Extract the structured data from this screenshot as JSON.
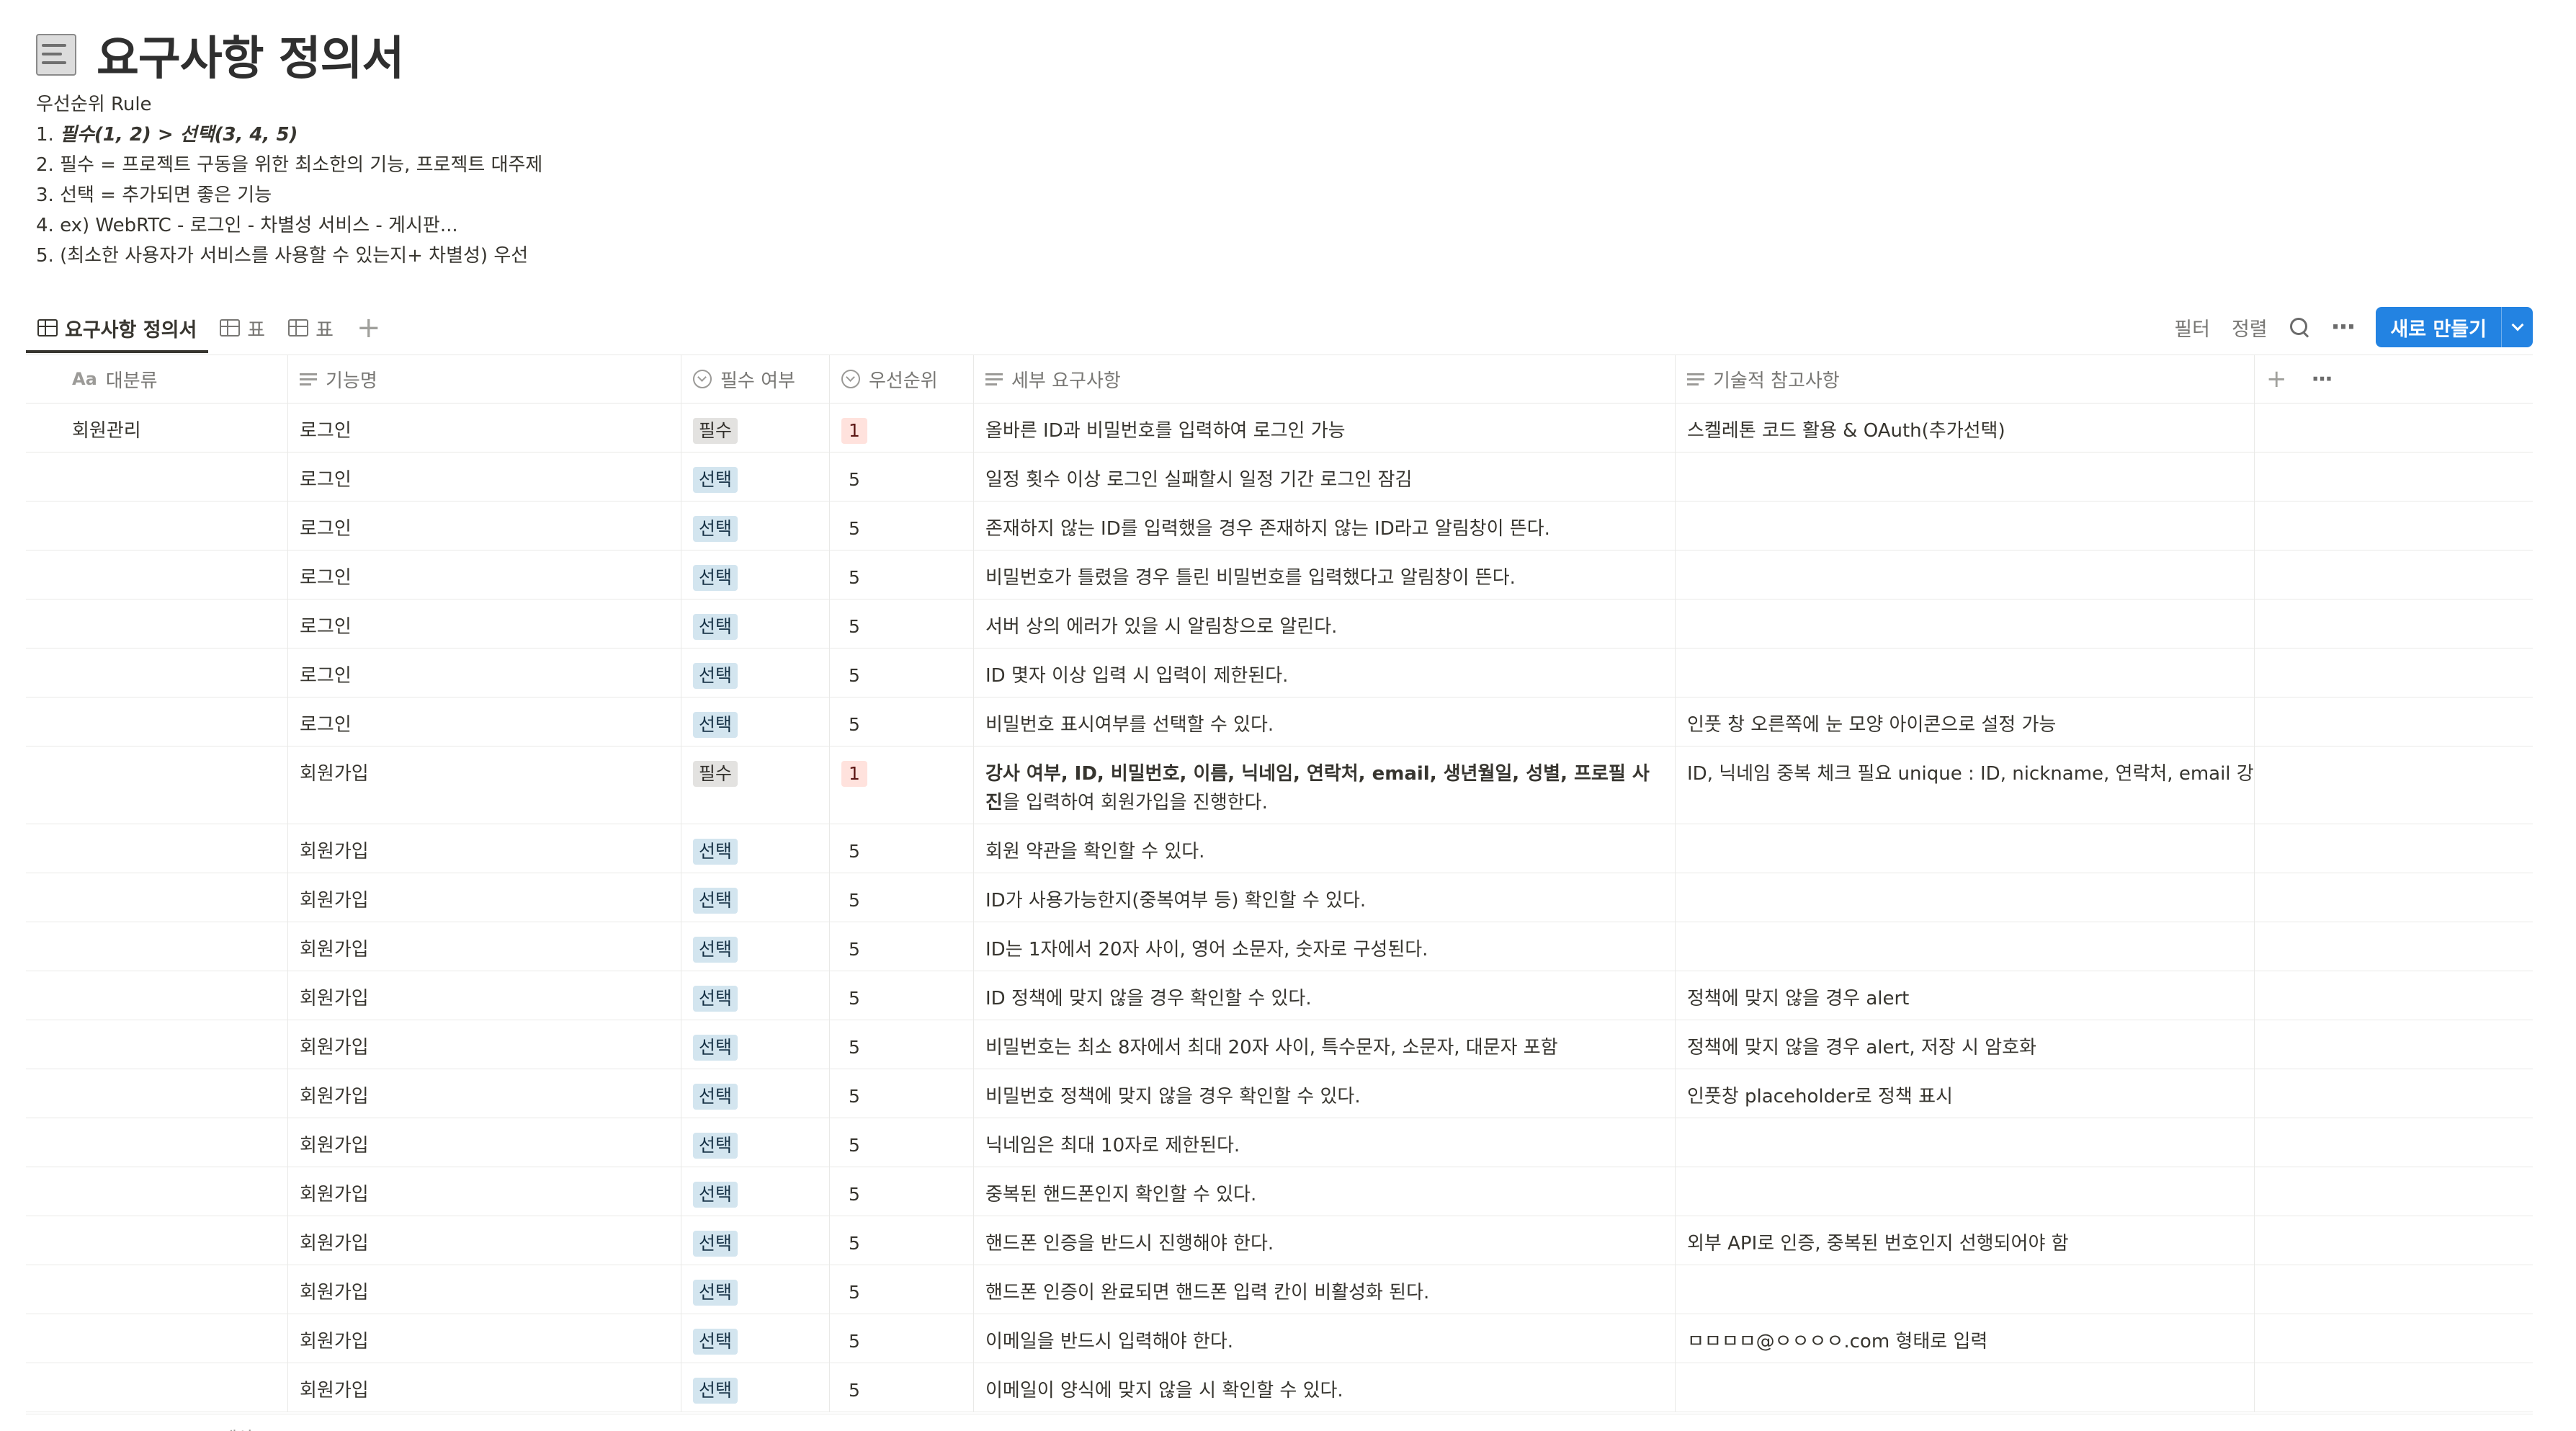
{
  "page": {
    "icon": "ledger-icon",
    "title": "요구사항 정의서"
  },
  "rules": {
    "heading": "우선순위 Rule",
    "lines": [
      {
        "prefix": "1. ",
        "text": "필수(1, 2) > 선택(3, 4, 5)",
        "emphasis": true
      },
      {
        "prefix": "2. ",
        "text": "필수 = 프로젝트 구동을 위한 최소한의 기능, 프로젝트 대주제",
        "emphasis": false
      },
      {
        "prefix": "3. ",
        "text": "선택 = 추가되면 좋은 기능",
        "emphasis": false
      },
      {
        "prefix": "4. ",
        "text": "ex) WebRTC - 로그인 - 차별성 서비스 - 게시판...",
        "emphasis": false
      },
      {
        "prefix": "5. ",
        "text": "(최소한 사용자가 서비스를 사용할 수 있는지+ 차별성) 우선",
        "emphasis": false
      }
    ]
  },
  "views": [
    {
      "label": "요구사항 정의서",
      "active": true
    },
    {
      "label": "표",
      "active": false
    },
    {
      "label": "표",
      "active": false
    }
  ],
  "actions": {
    "filter": "필터",
    "sort": "정렬",
    "new_button": "새로 만들기"
  },
  "columns": [
    {
      "label": "대분류",
      "icon": "title-property-icon"
    },
    {
      "label": "기능명",
      "icon": "text-property-icon"
    },
    {
      "label": "필수 여부",
      "icon": "select-property-icon"
    },
    {
      "label": "우선순위",
      "icon": "select-property-icon"
    },
    {
      "label": "세부 요구사항",
      "icon": "text-property-icon"
    },
    {
      "label": "기술적 참고사항",
      "icon": "text-property-icon"
    }
  ],
  "rows": [
    {
      "category": "회원관리",
      "feature": "로그인",
      "required": "필수",
      "priority": "1",
      "detail": "올바른 ID과 비밀번호를 입력하여 로그인 가능",
      "note": "스켈레톤 코드 활용 & OAuth(추가선택)"
    },
    {
      "category": "",
      "feature": "로그인",
      "required": "선택",
      "priority": "5",
      "detail": "일정 횟수 이상 로그인 실패할시 일정 기간 로그인 잠김",
      "note": ""
    },
    {
      "category": "",
      "feature": "로그인",
      "required": "선택",
      "priority": "5",
      "detail": "존재하지 않는 ID를 입력했을 경우 존재하지 않는 ID라고 알림창이 뜬다.",
      "note": ""
    },
    {
      "category": "",
      "feature": "로그인",
      "required": "선택",
      "priority": "5",
      "detail": "비밀번호가 틀렸을 경우 틀린 비밀번호를 입력했다고 알림창이 뜬다.",
      "note": ""
    },
    {
      "category": "",
      "feature": "로그인",
      "required": "선택",
      "priority": "5",
      "detail": "서버 상의 에러가 있을 시 알림창으로 알린다.",
      "note": ""
    },
    {
      "category": "",
      "feature": "로그인",
      "required": "선택",
      "priority": "5",
      "detail": "ID 몇자 이상 입력 시  입력이 제한된다.",
      "note": ""
    },
    {
      "category": "",
      "feature": "로그인",
      "required": "선택",
      "priority": "5",
      "detail": "비밀번호 표시여부를 선택할 수 있다.",
      "note": "인풋 창 오른쪽에 눈 모양 아이콘으로 설정 가능"
    },
    {
      "category": "",
      "feature": "회원가입",
      "required": "필수",
      "priority": "1",
      "detail_bold": "강사 여부, ID, 비밀번호, 이름, 닉네임, 연락처, email, 생년월일, 성별, 프로필 사진",
      "detail": "을 입력하여 회원가입을 진행한다.",
      "note": "ID, 닉네임 중복 체크 필요 unique : ID, nickname, 연락처, email 강"
    },
    {
      "category": "",
      "feature": "회원가입",
      "required": "선택",
      "priority": "5",
      "detail": "회원 약관을 확인할 수 있다.",
      "note": ""
    },
    {
      "category": "",
      "feature": "회원가입",
      "required": "선택",
      "priority": "5",
      "detail": "ID가 사용가능한지(중복여부 등) 확인할 수 있다.",
      "note": ""
    },
    {
      "category": "",
      "feature": "회원가입",
      "required": "선택",
      "priority": "5",
      "detail": "ID는 1자에서 20자 사이, 영어 소문자, 숫자로 구성된다.",
      "note": ""
    },
    {
      "category": "",
      "feature": "회원가입",
      "required": "선택",
      "priority": "5",
      "detail": "ID 정책에 맞지 않을 경우 확인할 수 있다.",
      "note": "정책에 맞지 않을 경우 alert"
    },
    {
      "category": "",
      "feature": "회원가입",
      "required": "선택",
      "priority": "5",
      "detail": "비밀번호는 최소 8자에서 최대 20자 사이, 특수문자, 소문자, 대문자 포함",
      "note": "정책에 맞지 않을 경우 alert, 저장 시 암호화"
    },
    {
      "category": "",
      "feature": "회원가입",
      "required": "선택",
      "priority": "5",
      "detail": "비밀번호 정책에 맞지 않을 경우 확인할 수 있다.",
      "note": "인풋창 placeholder로 정책 표시"
    },
    {
      "category": "",
      "feature": "회원가입",
      "required": "선택",
      "priority": "5",
      "detail": "닉네임은 최대 10자로 제한된다.",
      "note": ""
    },
    {
      "category": "",
      "feature": "회원가입",
      "required": "선택",
      "priority": "5",
      "detail": "중복된 핸드폰인지 확인할 수 있다.",
      "note": ""
    },
    {
      "category": "",
      "feature": "회원가입",
      "required": "선택",
      "priority": "5",
      "detail": "핸드폰 인증을 반드시 진행해야 한다.",
      "note": "외부 API로 인증, 중복된 번호인지 선행되어야 함"
    },
    {
      "category": "",
      "feature": "회원가입",
      "required": "선택",
      "priority": "5",
      "detail": "핸드폰 인증이 완료되면 핸드폰 입력 칸이 비활성화 된다.",
      "note": ""
    },
    {
      "category": "",
      "feature": "회원가입",
      "required": "선택",
      "priority": "5",
      "detail": "이메일을 반드시 입력해야 한다.",
      "note": "ㅁㅁㅁㅁ@ㅇㅇㅇㅇ.com 형태로 입력"
    },
    {
      "category": "",
      "feature": "회원가입",
      "required": "선택",
      "priority": "5",
      "detail": "이메일이 양식에 맞지 않을 시 확인할 수 있다.",
      "note": ""
    }
  ],
  "footer": {
    "calc_label": "계산"
  },
  "colors": {
    "accent": "#2383e2",
    "tag_select_bg": "#d3e5ef",
    "tag_required_bg": "#e3e2e0",
    "priority_1_bg": "#ffe2dd"
  }
}
